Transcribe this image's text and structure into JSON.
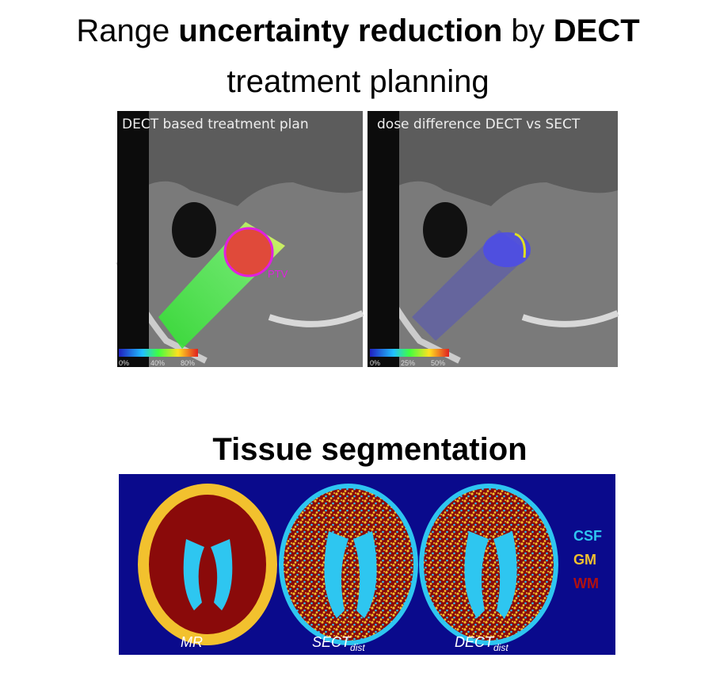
{
  "title": {
    "runs": [
      "Range",
      "uncertainty reduction",
      "by",
      "DECT",
      "treatment planning"
    ]
  },
  "top_panels": [
    {
      "caption": "DECT based treatment plan",
      "annotation": "PTV",
      "colorbar_ticks": [
        "0%",
        "40%",
        "80%"
      ]
    },
    {
      "caption": "dose difference DECT vs SECT",
      "colorbar_ticks": [
        "0%",
        "25%",
        "50%"
      ]
    }
  ],
  "section_heading": "Tissue segmentation",
  "segmentation": {
    "labels": [
      {
        "main": "MR"
      },
      {
        "main": "SECT",
        "sub": "dist"
      },
      {
        "main": "DECT",
        "sub": "dist"
      }
    ],
    "legend": [
      "CSF",
      "GM",
      "WM"
    ]
  }
}
